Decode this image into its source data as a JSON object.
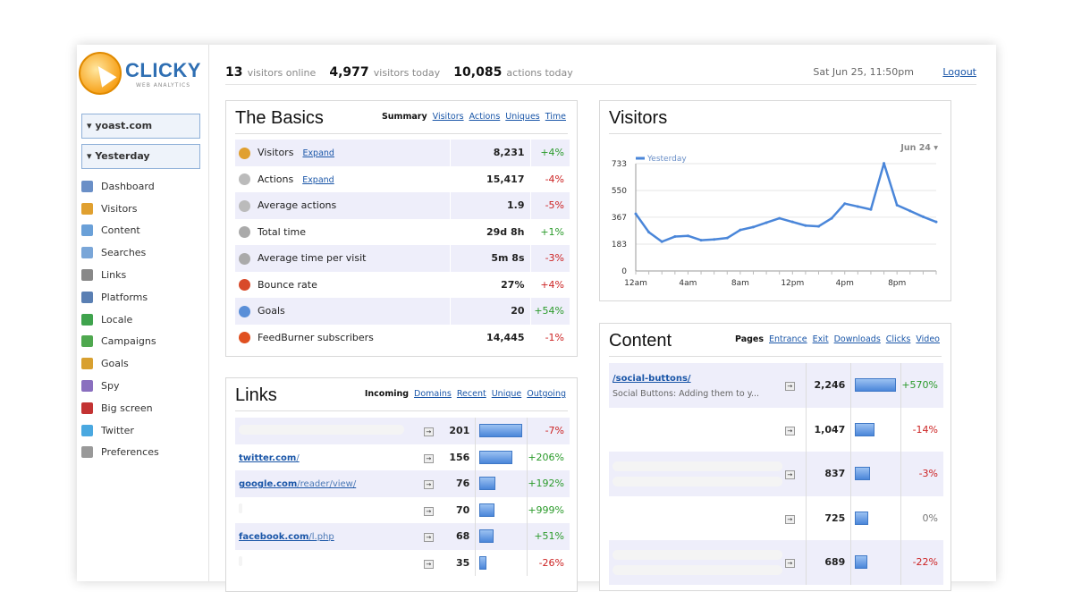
{
  "brand": {
    "name": "CLICKY",
    "subtitle": "WEB ANALYTICS"
  },
  "sidebar": {
    "site_selector": "▾ yoast.com",
    "date_selector": "▾ Yesterday",
    "items": [
      {
        "label": "Dashboard",
        "icon": "dashboard-icon",
        "color": "#6a8fc7"
      },
      {
        "label": "Visitors",
        "icon": "visitors-icon",
        "color": "#e0a030"
      },
      {
        "label": "Content",
        "icon": "content-icon",
        "color": "#6aa0d8"
      },
      {
        "label": "Searches",
        "icon": "search-icon",
        "color": "#7aa6d8"
      },
      {
        "label": "Links",
        "icon": "links-icon",
        "color": "#888888"
      },
      {
        "label": "Platforms",
        "icon": "platforms-icon",
        "color": "#5a7fb3"
      },
      {
        "label": "Locale",
        "icon": "globe-icon",
        "color": "#3fa34d"
      },
      {
        "label": "Campaigns",
        "icon": "campaigns-icon",
        "color": "#4fa84f"
      },
      {
        "label": "Goals",
        "icon": "goals-icon",
        "color": "#d8a030"
      },
      {
        "label": "Spy",
        "icon": "eye-icon",
        "color": "#8a6fbf"
      },
      {
        "label": "Big screen",
        "icon": "bigscreen-icon",
        "color": "#c33333"
      },
      {
        "label": "Twitter",
        "icon": "twitter-icon",
        "color": "#4aa8e0"
      },
      {
        "label": "Preferences",
        "icon": "gear-icon",
        "color": "#999999"
      }
    ]
  },
  "topbar": {
    "online_count": "13",
    "online_label": "visitors online",
    "today_count": "4,977",
    "today_label": "visitors today",
    "actions_count": "10,085",
    "actions_label": "actions today",
    "datetime": "Sat Jun 25, 11:50pm",
    "logout": "Logout"
  },
  "basics": {
    "title": "The Basics",
    "tabs": [
      "Summary",
      "Visitors",
      "Actions",
      "Uniques",
      "Time"
    ],
    "rows": [
      {
        "label": "Visitors",
        "expand": "Expand",
        "value": "8,231",
        "change": "+4%",
        "dir": "up",
        "icon": "visitors-icon",
        "color": "#e0a030"
      },
      {
        "label": "Actions",
        "expand": "Expand",
        "value": "15,417",
        "change": "-4%",
        "dir": "down",
        "icon": "cursor-icon",
        "color": "#bbbbbb"
      },
      {
        "label": "Average actions",
        "expand": "",
        "value": "1.9",
        "change": "-5%",
        "dir": "down",
        "icon": "cursor-icon",
        "color": "#bbbbbb"
      },
      {
        "label": "Total time",
        "expand": "",
        "value": "29d 8h",
        "change": "+1%",
        "dir": "up",
        "icon": "clock-icon",
        "color": "#aaaaaa"
      },
      {
        "label": "Average time per visit",
        "expand": "",
        "value": "5m 8s",
        "change": "-3%",
        "dir": "down",
        "icon": "clock-icon",
        "color": "#aaaaaa"
      },
      {
        "label": "Bounce rate",
        "expand": "",
        "value": "27%",
        "change": "+4%",
        "dir": "down",
        "icon": "bounce-icon",
        "color": "#d84a2a"
      },
      {
        "label": "Goals",
        "expand": "",
        "value": "20",
        "change": "+54%",
        "dir": "up",
        "icon": "goals-icon",
        "color": "#5a8fd8"
      },
      {
        "label": "FeedBurner subscribers",
        "expand": "",
        "value": "14,445",
        "change": "-1%",
        "dir": "down",
        "icon": "feedburner-icon",
        "color": "#e05020"
      }
    ]
  },
  "links": {
    "title": "Links",
    "tabs": [
      "Incoming",
      "Domains",
      "Recent",
      "Unique",
      "Outgoing"
    ],
    "rows": [
      {
        "domain": "",
        "path": "",
        "value": "201",
        "bar": 1.0,
        "change": "-7%",
        "dir": "down"
      },
      {
        "domain": "twitter.com",
        "path": "/",
        "value": "156",
        "bar": 0.78,
        "change": "+206%",
        "dir": "up"
      },
      {
        "domain": "google.com",
        "path": "/reader/view/",
        "value": "76",
        "bar": 0.38,
        "change": "+192%",
        "dir": "up"
      },
      {
        "domain": "",
        "path": "",
        "value": "70",
        "bar": 0.35,
        "change": "+999%",
        "dir": "up"
      },
      {
        "domain": "facebook.com",
        "path": "/l.php",
        "value": "68",
        "bar": 0.34,
        "change": "+51%",
        "dir": "up"
      },
      {
        "domain": "",
        "path": "",
        "value": "35",
        "bar": 0.17,
        "change": "-26%",
        "dir": "down"
      }
    ]
  },
  "visitors_chart": {
    "title": "Visitors",
    "period": "Jun 24 ▾"
  },
  "chart_data": {
    "type": "line",
    "legend": "Yesterday",
    "x": [
      "12am",
      "1am",
      "2am",
      "3am",
      "4am",
      "5am",
      "6am",
      "7am",
      "8am",
      "9am",
      "10am",
      "11am",
      "12pm",
      "1pm",
      "2pm",
      "3pm",
      "4pm",
      "5pm",
      "6pm",
      "7pm",
      "8pm",
      "9pm",
      "10pm",
      "11pm"
    ],
    "series": [
      {
        "name": "Yesterday",
        "values": [
          390,
          265,
          200,
          235,
          240,
          210,
          215,
          225,
          280,
          300,
          330,
          360,
          335,
          310,
          305,
          360,
          460,
          440,
          420,
          735,
          450,
          410,
          370,
          335
        ]
      }
    ],
    "xticks": [
      "12am",
      "4am",
      "8am",
      "12pm",
      "4pm",
      "8pm"
    ],
    "yticks": [
      "0",
      "183",
      "367",
      "550",
      "733"
    ],
    "ylim": [
      0,
      733
    ],
    "grid": true,
    "color": "#4a86d9"
  },
  "content": {
    "title": "Content",
    "tabs": [
      "Pages",
      "Entrance",
      "Exit",
      "Downloads",
      "Clicks",
      "Video"
    ],
    "rows": [
      {
        "page": "/social-buttons/",
        "desc": "Social Buttons: Adding them to y...",
        "value": "2,246",
        "bar": 1.0,
        "change": "+570%",
        "dir": "up"
      },
      {
        "page": "",
        "desc": "",
        "value": "1,047",
        "bar": 0.47,
        "change": "-14%",
        "dir": "down"
      },
      {
        "page": "",
        "desc": "",
        "value": "837",
        "bar": 0.37,
        "change": "-3%",
        "dir": "down"
      },
      {
        "page": "",
        "desc": "",
        "value": "725",
        "bar": 0.32,
        "change": "0%",
        "dir": "flat"
      },
      {
        "page": "",
        "desc": "",
        "value": "689",
        "bar": 0.31,
        "change": "-22%",
        "dir": "down"
      }
    ]
  }
}
